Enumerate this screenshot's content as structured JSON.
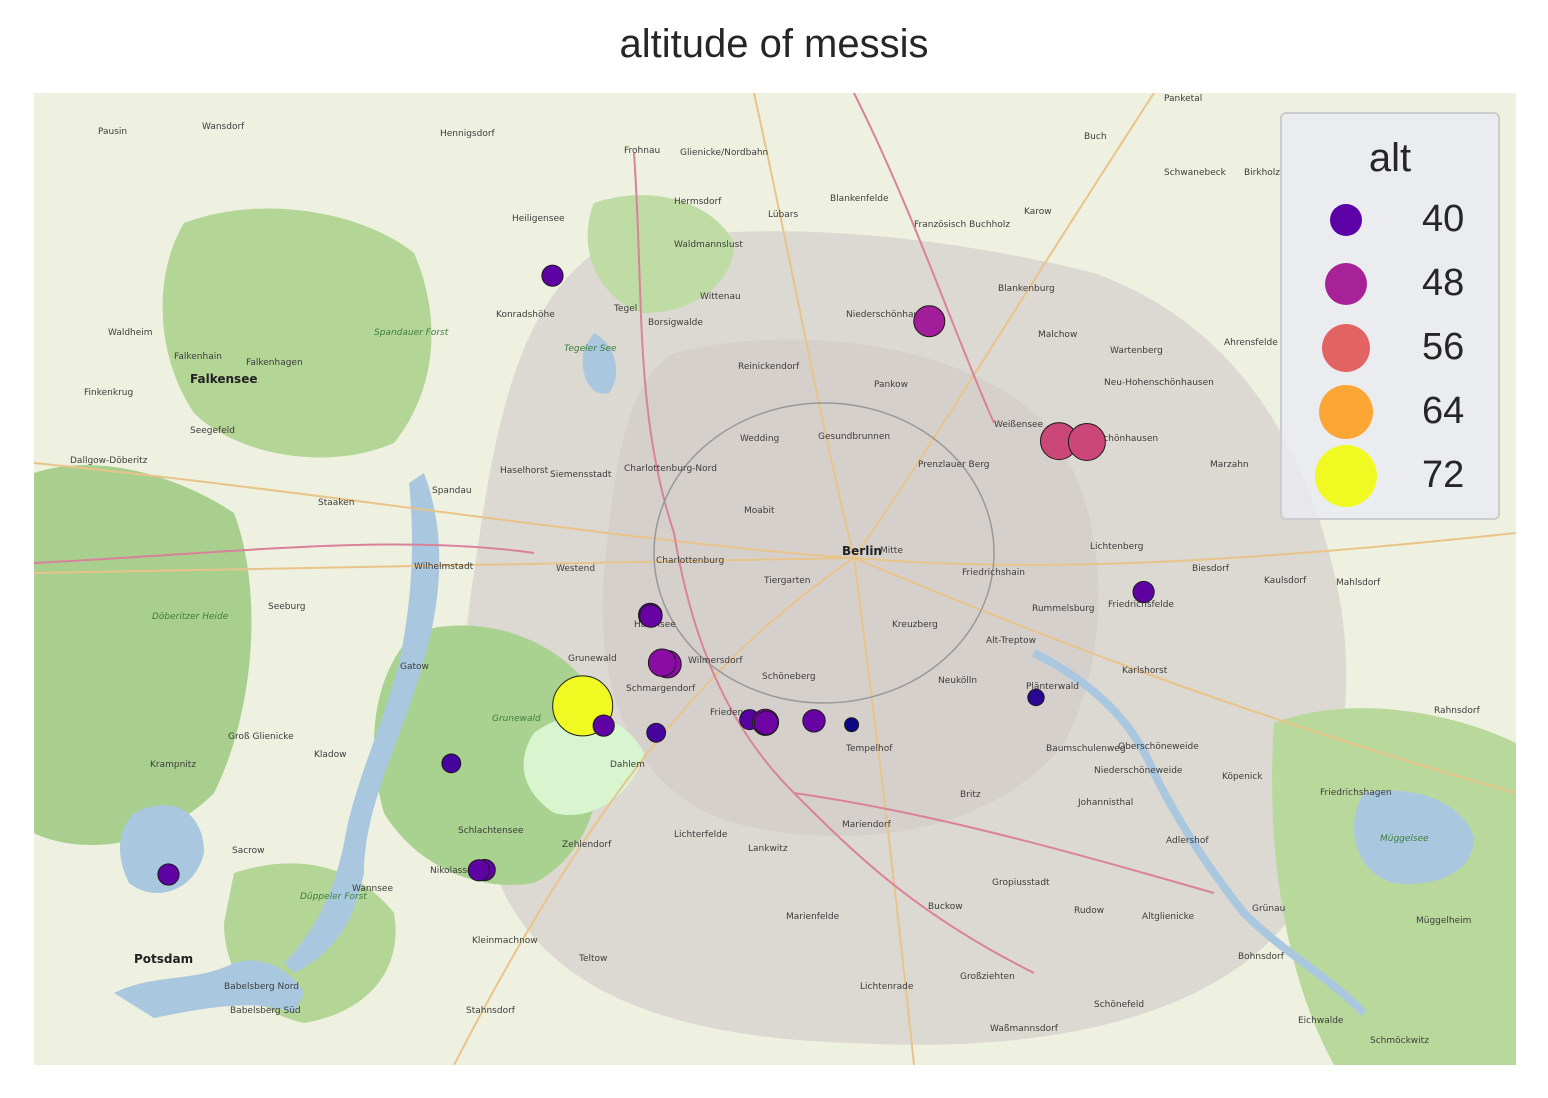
{
  "chart_data": {
    "type": "scatter",
    "title": "altitude of messis",
    "basemap": "OpenStreetMap, Berlin",
    "color_variable": "alt",
    "size_variable": "alt",
    "colormap": "plasma",
    "legend": {
      "title": "alt",
      "placement": "top-right",
      "entries": [
        {
          "label": "40",
          "color": "#5c01a6"
        },
        {
          "label": "48",
          "color": "#a72197"
        },
        {
          "label": "56",
          "color": "#e16462"
        },
        {
          "label": "64",
          "color": "#fca636"
        },
        {
          "label": "72",
          "color": "#f0f921"
        }
      ]
    },
    "points": [
      {
        "lon": 13.2939,
        "lat": 52.5985,
        "alt": 40
      },
      {
        "lon": 13.4984,
        "lat": 52.5833,
        "alt": 48
      },
      {
        "lon": 13.5688,
        "lat": 52.5433,
        "alt": 53
      },
      {
        "lon": 13.5839,
        "lat": 52.543,
        "alt": 53
      },
      {
        "lon": 13.6147,
        "lat": 52.4929,
        "alt": 40
      },
      {
        "lon": 13.347,
        "lat": 52.4852,
        "alt": 42
      },
      {
        "lon": 13.3473,
        "lat": 52.4849,
        "alt": 41
      },
      {
        "lon": 13.3563,
        "lat": 52.4688,
        "alt": 45
      },
      {
        "lon": 13.3534,
        "lat": 52.4693,
        "alt": 45
      },
      {
        "lon": 13.3103,
        "lat": 52.4549,
        "alt": 72
      },
      {
        "lon": 13.3217,
        "lat": 52.4483,
        "alt": 40
      },
      {
        "lon": 13.3502,
        "lat": 52.4459,
        "alt": 38
      },
      {
        "lon": 13.4009,
        "lat": 52.4503,
        "alt": 39
      },
      {
        "lon": 13.4095,
        "lat": 52.4494,
        "alt": 44
      },
      {
        "lon": 13.4099,
        "lat": 52.4492,
        "alt": 42
      },
      {
        "lon": 13.4358,
        "lat": 52.4499,
        "alt": 41
      },
      {
        "lon": 13.4562,
        "lat": 52.4486,
        "alt": 34
      },
      {
        "lon": 13.5563,
        "lat": 52.4577,
        "alt": 36
      },
      {
        "lon": 13.239,
        "lat": 52.4357,
        "alt": 38
      },
      {
        "lon": 13.2571,
        "lat": 52.4001,
        "alt": 40
      },
      {
        "lon": 13.2539,
        "lat": 52.4,
        "alt": 40
      },
      {
        "lon": 13.0855,
        "lat": 52.3986,
        "alt": 40
      }
    ]
  },
  "map_labels": {
    "cities": [
      "Berlin",
      "Potsdam",
      "Falkensee",
      "Spandau",
      "Teltow"
    ],
    "places": [
      "Pausin",
      "Wansdorf",
      "Hennigsdorf",
      "Hermsdorf",
      "Waldmannslust",
      "Tegel",
      "Heiligensee",
      "Konradshöhe",
      "Frohnau",
      "Glienicke/Nordbahn",
      "Lübars",
      "Blankenfelde",
      "Französisch Buchholz",
      "Buch",
      "Karow",
      "Schwanebeck",
      "Birkholz",
      "Panketal",
      "Blankenburg",
      "Malchow",
      "Wartenberg",
      "Ahrensfelde",
      "Neu-Hohenschönhausen",
      "Alt-Hohenschönhausen",
      "Marzahn",
      "Weißensee",
      "Pankow",
      "Niederschönhausen",
      "Wittenau",
      "Reinickendorf",
      "Borsigwalde",
      "Wedding",
      "Gesundbrunnen",
      "Prenzlauer Berg",
      "Moabit",
      "Mitte",
      "Charlottenburg",
      "Charlottenburg-Nord",
      "Siemensstadt",
      "Haselhorst",
      "Staaken",
      "Westend",
      "Tiergarten",
      "Friedrichshain",
      "Lichtenberg",
      "Biesdorf",
      "Kaulsdorf",
      "Mahlsdorf",
      "Friedrichsfelde",
      "Rummelsburg",
      "Kreuzberg",
      "Alt-Treptow",
      "Halensee",
      "Wilmersdorf",
      "Grunewald",
      "Schmargendorf",
      "Schöneberg",
      "Friedenau",
      "Tempelhof",
      "Neukölln",
      "Plänterwald",
      "Karlshorst",
      "Baumschulenweg",
      "Oberschöneweide",
      "Niederschöneweide",
      "Johannisthal",
      "Köpenick",
      "Adlershof",
      "Dahlem",
      "Lichterfelde",
      "Lankwitz",
      "Mariendorf",
      "Britz",
      "Buckow",
      "Rudow",
      "Gropiusstadt",
      "Marienfelde",
      "Zehlendorf",
      "Schlachtensee",
      "Nikolassee",
      "Wannsee",
      "Kleinmachnow",
      "Stahnsdorf",
      "Lichtenrade",
      "Schönefeld",
      "Großziehten",
      "Waßmannsdorf",
      "Seeburg",
      "Gatow",
      "Kladow",
      "Wilhelmstadt",
      "Dallgow-Döberitz",
      "Seegefeld",
      "Finkenkrug",
      "Waldheim",
      "Falkenhain",
      "Falkenhagen",
      "Groß Glienicke",
      "Krampnitz",
      "Sacrow",
      "Babelsberg Nord",
      "Babelsberg Süd",
      "Müggelheim",
      "Grünau",
      "Bohnsdorf",
      "Altglienicke",
      "Friedrichshagen",
      "Rahnsdorf",
      "Schmöckwitz",
      "Eichwalde"
    ],
    "green_areas": [
      "Döberitzer Heide",
      "Grunewald",
      "Spandauer Forst",
      "Düppeler Forst",
      "Müggelsee",
      "Tegeler See"
    ]
  }
}
